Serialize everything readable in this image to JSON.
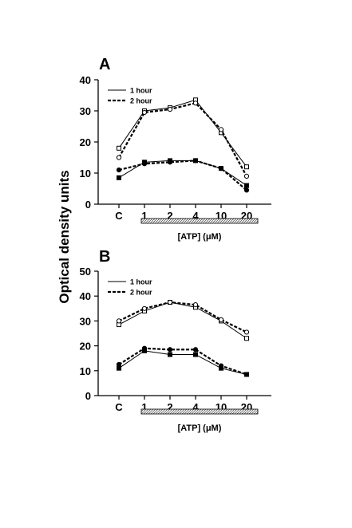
{
  "shared_ylabel": "Optical density units",
  "chart_data": [
    {
      "type": "line",
      "panel_label": "A",
      "categories": [
        "C",
        "1",
        "2",
        "4",
        "10",
        "20"
      ],
      "ylim": [
        0,
        40
      ],
      "yticks": [
        "0",
        "10",
        "20",
        "30",
        "40"
      ],
      "xlabel": "[ATP] (μM)",
      "legend_position": "top-left",
      "series": [
        {
          "name": "1 hour",
          "style": "solid",
          "marker": "open-square",
          "values": [
            18,
            30,
            31,
            33.5,
            23,
            12
          ]
        },
        {
          "name": "2 hour",
          "style": "dashed",
          "marker": "open-circle",
          "values": [
            15,
            29.5,
            30.5,
            32.5,
            24,
            9
          ]
        },
        {
          "name": "1 hour",
          "style": "solid",
          "marker": "filled-square",
          "values": [
            8.5,
            13.5,
            14,
            14,
            11.5,
            6
          ]
        },
        {
          "name": "2 hour",
          "style": "dashed",
          "marker": "filled-circle",
          "values": [
            11,
            13,
            13.5,
            14,
            11.5,
            4.5
          ]
        }
      ]
    },
    {
      "type": "line",
      "panel_label": "B",
      "categories": [
        "C",
        "1",
        "2",
        "4",
        "10",
        "20"
      ],
      "ylim": [
        0,
        50
      ],
      "yticks": [
        "0",
        "10",
        "20",
        "30",
        "40",
        "50"
      ],
      "xlabel": "[ATP] (μM)",
      "legend_position": "top-left",
      "series": [
        {
          "name": "1 hour",
          "style": "solid",
          "marker": "open-square",
          "values": [
            28.5,
            34,
            37.5,
            35.5,
            30,
            23
          ]
        },
        {
          "name": "2 hour",
          "style": "dashed",
          "marker": "open-circle",
          "values": [
            30,
            35,
            37.5,
            36.5,
            30.5,
            25.5
          ]
        },
        {
          "name": "1 hour",
          "style": "solid",
          "marker": "filled-square",
          "values": [
            11,
            18,
            16.5,
            16.5,
            11,
            8.5
          ]
        },
        {
          "name": "2 hour",
          "style": "dashed",
          "marker": "filled-circle",
          "values": [
            12.5,
            19,
            18.5,
            18.5,
            12,
            8.5
          ]
        }
      ]
    }
  ]
}
